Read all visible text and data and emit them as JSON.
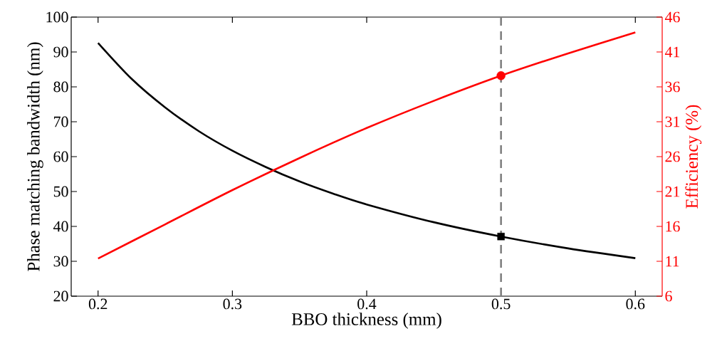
{
  "chart_data": {
    "type": "line",
    "xlabel": "BBO thickness (mm)",
    "ylabel": "Phase matching bandwidth (nm)",
    "y2label": "Efficiency (%)",
    "xlim": [
      0.18,
      0.62
    ],
    "ylim": [
      20,
      100
    ],
    "y2lim": [
      6,
      46
    ],
    "xticks": [
      0.2,
      0.3,
      0.4,
      0.5,
      0.6
    ],
    "yticks": [
      20,
      30,
      40,
      50,
      60,
      70,
      80,
      90,
      100
    ],
    "y2ticks": [
      6,
      11,
      16,
      21,
      26,
      31,
      36,
      41,
      46
    ],
    "marker": "none",
    "line_style": "solid",
    "series": [
      {
        "color": "#000000",
        "x": [
          0.2,
          0.225,
          0.25,
          0.275,
          0.3,
          0.325,
          0.35,
          0.375,
          0.4,
          0.45,
          0.5,
          0.55,
          0.6
        ],
        "values": [
          92.6,
          82.3,
          74.1,
          67.3,
          61.7,
          57.0,
          52.9,
          49.4,
          46.3,
          41.2,
          37.1,
          33.7,
          30.9
        ]
      },
      {
        "axis": "y2",
        "color": "#ff0000",
        "x": [
          0.2,
          0.25,
          0.3,
          0.35,
          0.4,
          0.45,
          0.5,
          0.55,
          0.6
        ],
        "values": [
          11.4,
          16.3,
          21.2,
          25.8,
          30.1,
          34.0,
          37.6,
          40.8,
          43.8
        ]
      },
      {
        "type": "scatter",
        "marker": "square",
        "color": "#000000",
        "x": [
          0.5
        ],
        "values": [
          37.1
        ]
      },
      {
        "type": "scatter",
        "axis": "y2",
        "marker": "circle",
        "color": "#ff0000",
        "x": [
          0.5
        ],
        "values": [
          37.6
        ]
      }
    ],
    "ref_lines": [
      {
        "axis": "x",
        "value": 0.5,
        "color": "#808080",
        "line_style": "dashed"
      }
    ]
  }
}
